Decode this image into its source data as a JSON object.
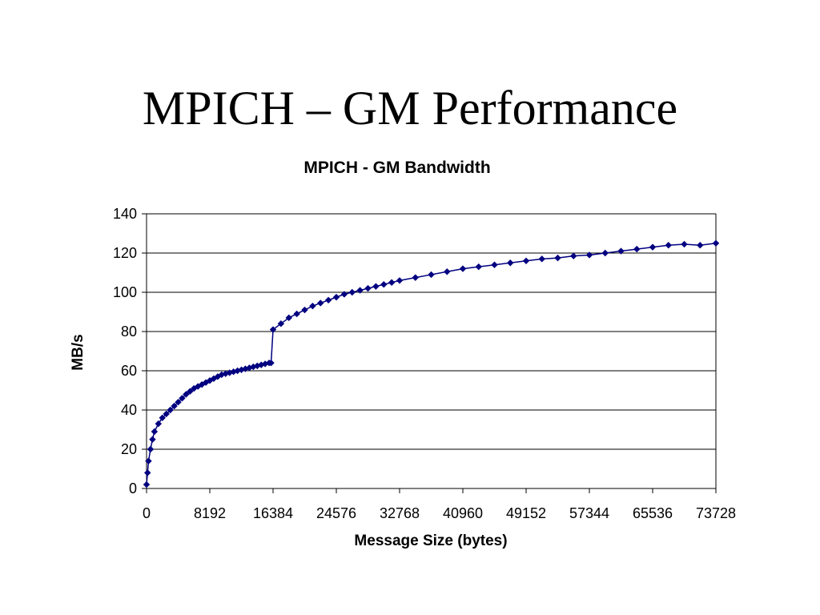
{
  "slide": {
    "title": "MPICH – GM Performance"
  },
  "chart_data": {
    "type": "scatter",
    "title": "MPICH - GM Bandwidth",
    "xlabel": "Message Size (bytes)",
    "ylabel": "MB/s",
    "xlim": [
      0,
      73728
    ],
    "ylim": [
      0,
      140
    ],
    "xticks": [
      "0",
      "8192",
      "16384",
      "24576",
      "32768",
      "40960",
      "49152",
      "57344",
      "65536",
      "73728"
    ],
    "yticks": [
      "0",
      "20",
      "40",
      "60",
      "80",
      "100",
      "120",
      "140"
    ],
    "grid": "horizontal",
    "legend": "none",
    "series_color": "#000080",
    "series": [
      {
        "x": [
          0,
          128,
          256,
          512,
          768,
          1024,
          1536,
          2048,
          2560,
          3072,
          3584,
          4096,
          4608,
          5120,
          5632,
          6144,
          6656,
          7168,
          7680,
          8192,
          8704,
          9216,
          9728,
          10240,
          10752,
          11264,
          11776,
          12288,
          12800,
          13312,
          13824,
          14336,
          14848,
          15360,
          15872,
          16128,
          16384,
          17408,
          18432,
          19456,
          20480,
          21504,
          22528,
          23552,
          24576,
          25600,
          26624,
          27648,
          28672,
          29696,
          30720,
          31744,
          32768,
          34816,
          36864,
          38912,
          40960,
          43008,
          45056,
          47104,
          49152,
          51200,
          53248,
          55296,
          57344,
          59392,
          61440,
          63488,
          65536,
          67584,
          69632,
          71680,
          73728
        ],
        "y": [
          2,
          8,
          14,
          20,
          25,
          29,
          33,
          36,
          38,
          40,
          42,
          44,
          46,
          48,
          49.5,
          51,
          52,
          53,
          54,
          55,
          56,
          57,
          58,
          58.5,
          59,
          59.5,
          60,
          60.5,
          61,
          61.5,
          62,
          62.5,
          63,
          63.5,
          64,
          64,
          81,
          84,
          87,
          89,
          91,
          93,
          94.5,
          96,
          97.5,
          99,
          100,
          101,
          102,
          103,
          104,
          105,
          106,
          107.5,
          109,
          110.5,
          112,
          113,
          114,
          115,
          116,
          117,
          117.5,
          118.5,
          119,
          120,
          121,
          122,
          123,
          124,
          124.5,
          124,
          125
        ]
      }
    ]
  }
}
